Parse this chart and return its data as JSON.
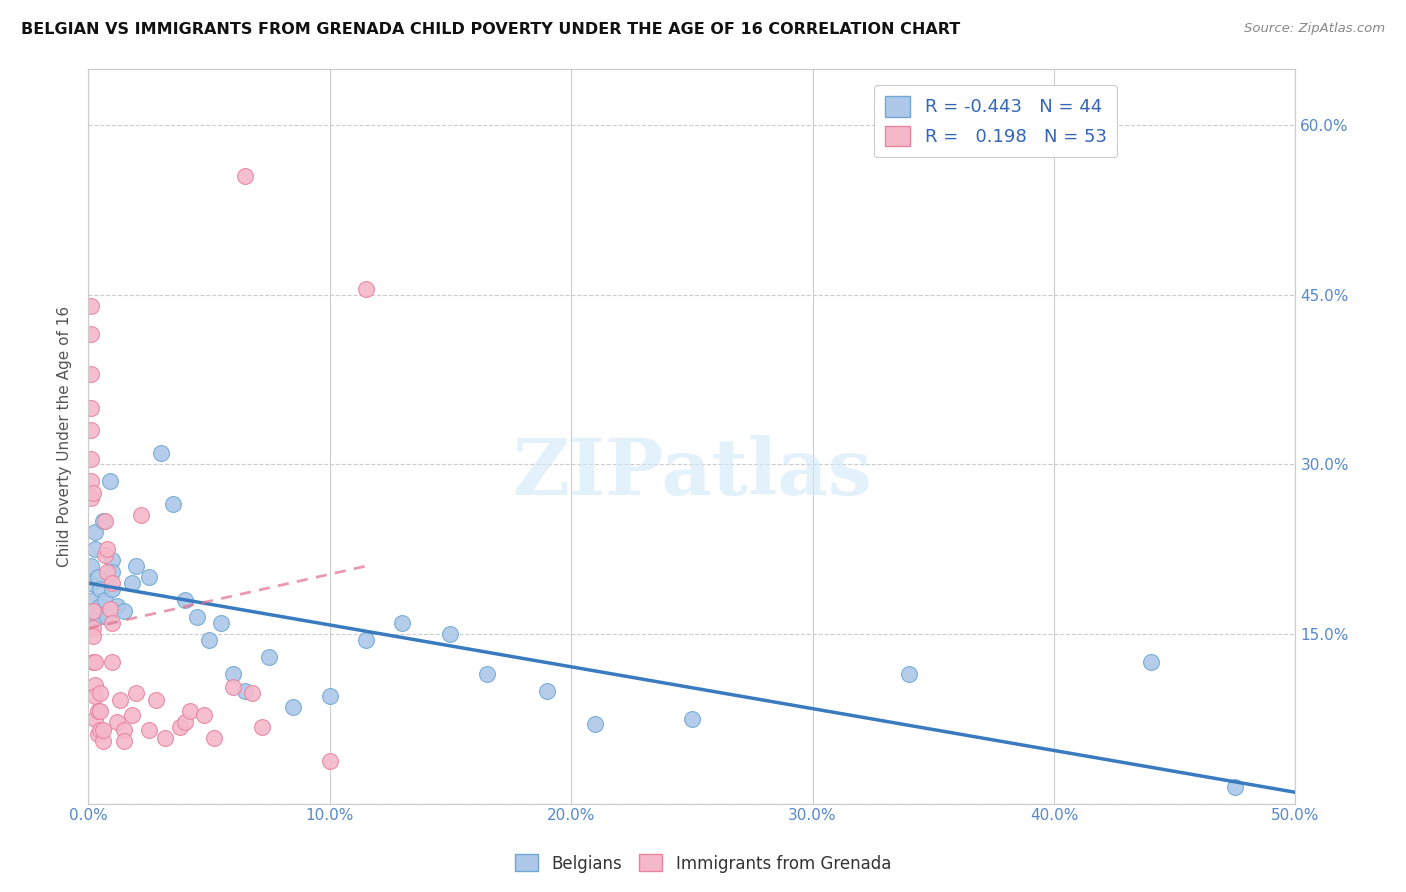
{
  "title": "BELGIAN VS IMMIGRANTS FROM GRENADA CHILD POVERTY UNDER THE AGE OF 16 CORRELATION CHART",
  "source": "Source: ZipAtlas.com",
  "ylabel": "Child Poverty Under the Age of 16",
  "xlim": [
    0,
    0.5
  ],
  "ylim": [
    0,
    0.65
  ],
  "xticks": [
    0.0,
    0.1,
    0.2,
    0.3,
    0.4,
    0.5
  ],
  "xticklabels": [
    "0.0%",
    "10.0%",
    "20.0%",
    "30.0%",
    "40.0%",
    "50.0%"
  ],
  "yticks_left": [
    0.0,
    0.15,
    0.3,
    0.45,
    0.6
  ],
  "yticklabels_left": [
    "",
    "",
    "",
    "",
    ""
  ],
  "yticks_right": [
    0.15,
    0.3,
    0.45,
    0.6
  ],
  "yticklabels_right": [
    "15.0%",
    "30.0%",
    "45.0%",
    "60.0%"
  ],
  "belgian_color": "#adc8e8",
  "grenada_color": "#f5b8ca",
  "belgian_edge": "#6fa8d4",
  "grenada_edge": "#e8849e",
  "trend_blue_color": "#3a7bbf",
  "trend_pink_color": "#e07090",
  "legend_r_belgian": "-0.443",
  "legend_n_belgian": "44",
  "legend_r_grenada": "0.198",
  "legend_n_grenada": "53",
  "watermark": "ZIPatlas",
  "belgian_x": [
    0.001,
    0.001,
    0.002,
    0.002,
    0.003,
    0.003,
    0.003,
    0.004,
    0.004,
    0.005,
    0.005,
    0.006,
    0.007,
    0.008,
    0.009,
    0.01,
    0.01,
    0.01,
    0.012,
    0.015,
    0.018,
    0.02,
    0.025,
    0.03,
    0.035,
    0.04,
    0.045,
    0.05,
    0.055,
    0.06,
    0.065,
    0.075,
    0.085,
    0.1,
    0.115,
    0.13,
    0.15,
    0.165,
    0.19,
    0.21,
    0.25,
    0.34,
    0.44,
    0.475
  ],
  "belgian_y": [
    0.195,
    0.21,
    0.18,
    0.17,
    0.165,
    0.225,
    0.24,
    0.2,
    0.165,
    0.19,
    0.175,
    0.25,
    0.18,
    0.165,
    0.285,
    0.19,
    0.215,
    0.205,
    0.175,
    0.17,
    0.195,
    0.21,
    0.2,
    0.31,
    0.265,
    0.18,
    0.165,
    0.145,
    0.16,
    0.115,
    0.1,
    0.13,
    0.085,
    0.095,
    0.145,
    0.16,
    0.15,
    0.115,
    0.1,
    0.07,
    0.075,
    0.115,
    0.125,
    0.015
  ],
  "grenada_x": [
    0.001,
    0.001,
    0.001,
    0.001,
    0.001,
    0.001,
    0.001,
    0.001,
    0.002,
    0.002,
    0.002,
    0.002,
    0.002,
    0.003,
    0.003,
    0.003,
    0.003,
    0.004,
    0.004,
    0.005,
    0.005,
    0.005,
    0.006,
    0.006,
    0.007,
    0.007,
    0.008,
    0.008,
    0.009,
    0.01,
    0.01,
    0.01,
    0.012,
    0.013,
    0.015,
    0.015,
    0.018,
    0.02,
    0.022,
    0.025,
    0.028,
    0.032,
    0.038,
    0.04,
    0.042,
    0.048,
    0.052,
    0.06,
    0.065,
    0.068,
    0.072,
    0.1,
    0.115
  ],
  "grenada_y": [
    0.44,
    0.415,
    0.38,
    0.35,
    0.33,
    0.305,
    0.285,
    0.27,
    0.275,
    0.17,
    0.155,
    0.148,
    0.125,
    0.125,
    0.105,
    0.095,
    0.075,
    0.082,
    0.062,
    0.082,
    0.098,
    0.065,
    0.055,
    0.065,
    0.22,
    0.25,
    0.205,
    0.225,
    0.172,
    0.195,
    0.16,
    0.125,
    0.072,
    0.092,
    0.065,
    0.055,
    0.078,
    0.098,
    0.255,
    0.065,
    0.092,
    0.058,
    0.068,
    0.072,
    0.082,
    0.078,
    0.058,
    0.103,
    0.555,
    0.098,
    0.068,
    0.038,
    0.455
  ],
  "trend_blue_x0": 0.0,
  "trend_blue_y0": 0.195,
  "trend_blue_x1": 0.5,
  "trend_blue_y1": 0.01,
  "trend_pink_x0": 0.0,
  "trend_pink_y0": 0.155,
  "trend_pink_x1": 0.115,
  "trend_pink_y1": 0.21
}
